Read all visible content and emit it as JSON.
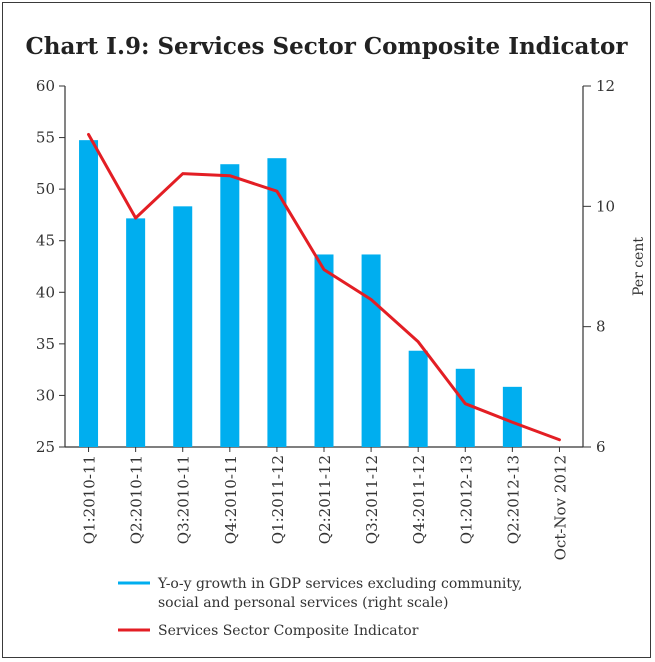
{
  "chart_data": {
    "type": "bar",
    "title": "Chart I.9: Services Sector Composite Indicator",
    "categories": [
      "Q1:2010-11",
      "Q2:2010-11",
      "Q3:2010-11",
      "Q4:2010-11",
      "Q1:2011-12",
      "Q2:2011-12",
      "Q3:2011-12",
      "Q4:2011-12",
      "Q1:2012-13",
      "Q2:2012-13",
      "Oct-Nov 2012"
    ],
    "y_left": {
      "ylim": [
        25,
        60
      ],
      "ticks": [
        25,
        30,
        35,
        40,
        45,
        50,
        55,
        60
      ],
      "label": ""
    },
    "y_right": {
      "ylim": [
        6,
        12
      ],
      "ticks": [
        6,
        8,
        10,
        12
      ],
      "label": "Per cent"
    },
    "series": [
      {
        "name": "Y-o-y growth in GDP services excluding community, social and personal services (right scale)",
        "legend_lines": [
          "Y-o-y growth in GDP services excluding community,",
          "social and personal services (right scale)"
        ],
        "type": "bar",
        "axis": "right",
        "color": "#00AEEF",
        "values": [
          11.1,
          9.8,
          10.0,
          10.7,
          10.8,
          9.2,
          9.2,
          7.6,
          7.3,
          7.0,
          null
        ]
      },
      {
        "name": "Services Sector Composite Indicator",
        "legend_lines": [
          "Services Sector Composite Indicator"
        ],
        "type": "line",
        "axis": "left",
        "color": "#E31E24",
        "values": [
          55.3,
          47.2,
          51.5,
          51.3,
          49.8,
          42.2,
          39.3,
          35.2,
          29.2,
          27.4,
          25.7
        ]
      }
    ],
    "grid": false,
    "legend_position": "bottom"
  }
}
